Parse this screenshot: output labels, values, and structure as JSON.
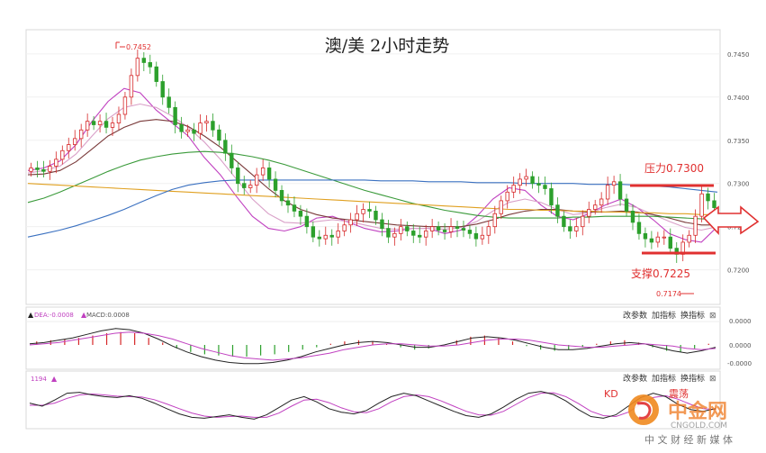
{
  "title": "澳/美 2小时走势",
  "annotations": {
    "resistance_label": "压力0.7300",
    "support_label": "支撑0.7225",
    "high_marker": "0.7452",
    "low_marker": "0.7174"
  },
  "macd_panel": {
    "dea_label": "DEA:-0.0008",
    "macd_label": "MACD:0.0008",
    "tick_labels": [
      "0.0000",
      "0.0000",
      "-0.0000"
    ],
    "buttons": [
      "改参数",
      "加指标",
      "换指标"
    ],
    "close_glyph": "⊠"
  },
  "kdj_panel": {
    "value_label": "1194",
    "buttons": [
      "改参数",
      "加指标",
      "换指标"
    ],
    "close_glyph": "⊠",
    "overlay_text_1": "KD",
    "overlay_text_2": "震荡"
  },
  "watermark": {
    "brand": "中金网",
    "sub": "CNGOLD.COM",
    "tagline": "中 文 财 经 新 媒 体"
  },
  "colors": {
    "up": "#d62728",
    "down": "#2ca02c",
    "resistance_line": "#e03030",
    "arrow": "#e03030",
    "ma_black": "#222222",
    "ma_magenta": "#c040c0",
    "ma_pink": "#d9a0c8",
    "ma_brown": "#7a3a3a",
    "ma_green": "#3a9a3a",
    "ma_orange": "#e0a020",
    "ma_blue": "#3a70c0"
  },
  "chart_data": {
    "type": "candlestick",
    "y_axis_ticks": [
      0.745,
      0.74,
      0.735,
      0.73,
      0.725,
      0.72
    ],
    "y_axis_labels": [
      "0.7450",
      "0.7400",
      "0.7350",
      "0.7300",
      "0.7250",
      "0.7200"
    ],
    "ylim": [
      0.716,
      0.7478
    ],
    "resistance": 0.73,
    "support": 0.7225,
    "high": 0.7452,
    "low": 0.7174,
    "close_series": [
      0.7318,
      0.7316,
      0.7314,
      0.732,
      0.7328,
      0.7338,
      0.7345,
      0.7352,
      0.7362,
      0.7372,
      0.7368,
      0.7372,
      0.7365,
      0.737,
      0.738,
      0.74,
      0.7425,
      0.7445,
      0.744,
      0.7435,
      0.7418,
      0.74,
      0.7388,
      0.7368,
      0.736,
      0.7362,
      0.7358,
      0.737,
      0.7372,
      0.7362,
      0.735,
      0.7335,
      0.7318,
      0.73,
      0.7295,
      0.7298,
      0.731,
      0.7318,
      0.7305,
      0.7292,
      0.728,
      0.7275,
      0.7268,
      0.7262,
      0.725,
      0.7238,
      0.7236,
      0.724,
      0.7238,
      0.7245,
      0.7252,
      0.7258,
      0.7265,
      0.727,
      0.7268,
      0.7258,
      0.7248,
      0.7238,
      0.7242,
      0.725,
      0.7245,
      0.724,
      0.7238,
      0.7245,
      0.725,
      0.7246,
      0.7244,
      0.725,
      0.7248,
      0.7246,
      0.7242,
      0.7236,
      0.724,
      0.725,
      0.7265,
      0.728,
      0.729,
      0.7298,
      0.7305,
      0.7308,
      0.73,
      0.7298,
      0.7294,
      0.7275,
      0.7262,
      0.725,
      0.7245,
      0.725,
      0.7262,
      0.727,
      0.7275,
      0.7282,
      0.7298,
      0.7302,
      0.7282,
      0.7268,
      0.7255,
      0.7242,
      0.7236,
      0.7232,
      0.7238,
      0.7238,
      0.7225,
      0.7218,
      0.7232,
      0.724,
      0.7262,
      0.7288,
      0.728,
      0.7272
    ],
    "ma_series": [
      {
        "color": "ma_magenta",
        "values": [
          0.7315,
          0.7318,
          0.7326,
          0.7345,
          0.7372,
          0.7395,
          0.741,
          0.7405,
          0.7385,
          0.737,
          0.7355,
          0.733,
          0.731,
          0.7285,
          0.7262,
          0.7248,
          0.7245,
          0.725,
          0.726,
          0.7262,
          0.7255,
          0.7248,
          0.7244,
          0.7245,
          0.7248,
          0.7248,
          0.7242,
          0.7246,
          0.7262,
          0.7282,
          0.7295,
          0.7292,
          0.7275,
          0.7262,
          0.7258,
          0.7265,
          0.7275,
          0.7282,
          0.7272,
          0.7258,
          0.7242,
          0.7235,
          0.7232,
          0.725
        ]
      },
      {
        "color": "ma_pink",
        "values": [
          0.7312,
          0.7315,
          0.732,
          0.7334,
          0.7355,
          0.7375,
          0.7388,
          0.7392,
          0.7388,
          0.7378,
          0.7365,
          0.7348,
          0.7328,
          0.7305,
          0.7282,
          0.7265,
          0.7255,
          0.7254,
          0.7256,
          0.7258,
          0.7256,
          0.7252,
          0.7248,
          0.7247,
          0.7248,
          0.7248,
          0.7247,
          0.7249,
          0.7256,
          0.7268,
          0.7278,
          0.7282,
          0.7278,
          0.727,
          0.7264,
          0.7266,
          0.7272,
          0.7276,
          0.7272,
          0.7264,
          0.7256,
          0.7249,
          0.7246,
          0.725
        ]
      },
      {
        "color": "ma_brown",
        "values": [
          0.731,
          0.7311,
          0.7315,
          0.7325,
          0.734,
          0.7355,
          0.7365,
          0.7372,
          0.7374,
          0.7372,
          0.7366,
          0.7355,
          0.7342,
          0.7326,
          0.731,
          0.7294,
          0.728,
          0.727,
          0.7264,
          0.726,
          0.7258,
          0.7256,
          0.7254,
          0.7252,
          0.7251,
          0.725,
          0.725,
          0.725,
          0.7253,
          0.7258,
          0.7264,
          0.7268,
          0.727,
          0.727,
          0.7268,
          0.7267,
          0.7267,
          0.7268,
          0.7267,
          0.7264,
          0.726,
          0.7255,
          0.7252,
          0.7252
        ]
      },
      {
        "color": "ma_green",
        "values": [
          0.7278,
          0.7283,
          0.729,
          0.7298,
          0.7306,
          0.7314,
          0.7321,
          0.7327,
          0.7331,
          0.7334,
          0.7336,
          0.7337,
          0.7336,
          0.7334,
          0.7331,
          0.7327,
          0.7322,
          0.7316,
          0.731,
          0.7304,
          0.7298,
          0.7292,
          0.7287,
          0.7282,
          0.7277,
          0.7273,
          0.7269,
          0.7266,
          0.7263,
          0.7261,
          0.726,
          0.726,
          0.726,
          0.726,
          0.7261,
          0.7261,
          0.7262,
          0.7262,
          0.7262,
          0.7262,
          0.7261,
          0.726,
          0.7259,
          0.7258
        ]
      },
      {
        "color": "ma_orange",
        "values": [
          0.73,
          0.7299,
          0.7298,
          0.7297,
          0.7296,
          0.7295,
          0.7294,
          0.7293,
          0.7292,
          0.7291,
          0.729,
          0.7289,
          0.7288,
          0.7287,
          0.7286,
          0.7285,
          0.7284,
          0.7283,
          0.7282,
          0.7281,
          0.728,
          0.7279,
          0.7278,
          0.7277,
          0.7276,
          0.7275,
          0.7274,
          0.7273,
          0.7272,
          0.7271,
          0.727,
          0.727,
          0.7269,
          0.7269,
          0.7268,
          0.7268,
          0.7267,
          0.7267,
          0.7266,
          0.7266,
          0.7265,
          0.7265,
          0.7264,
          0.7264
        ]
      },
      {
        "color": "ma_blue",
        "values": [
          0.7238,
          0.7242,
          0.7246,
          0.7251,
          0.7257,
          0.7263,
          0.727,
          0.7278,
          0.7286,
          0.7293,
          0.7298,
          0.7301,
          0.7303,
          0.7304,
          0.7304,
          0.7304,
          0.7304,
          0.7304,
          0.7304,
          0.7304,
          0.7304,
          0.7304,
          0.7303,
          0.7303,
          0.7303,
          0.7302,
          0.7302,
          0.7302,
          0.7301,
          0.7301,
          0.7301,
          0.73,
          0.73,
          0.73,
          0.73,
          0.7299,
          0.7299,
          0.7299,
          0.7298,
          0.7297,
          0.7296,
          0.7294,
          0.7292,
          0.729
        ]
      }
    ],
    "macd": {
      "histogram": [
        0.3,
        0.4,
        0.5,
        0.6,
        0.8,
        1.0,
        1.1,
        1.0,
        0.6,
        0.2,
        -0.3,
        -0.6,
        -0.8,
        -0.9,
        -1.0,
        -1.0,
        -0.9,
        -0.8,
        -0.6,
        -0.4,
        -0.2,
        0.1,
        0.3,
        0.4,
        0.3,
        0.1,
        -0.2,
        -0.4,
        -0.3,
        0.0,
        0.4,
        0.7,
        0.8,
        0.6,
        0.3,
        -0.1,
        -0.4,
        -0.5,
        -0.4,
        -0.2,
        0.1,
        0.3,
        0.4,
        0.2,
        -0.2,
        -0.5,
        -0.6,
        -0.3,
        0.1
      ],
      "dif": [
        0.1,
        0.2,
        0.4,
        0.6,
        0.9,
        1.2,
        1.4,
        1.3,
        1.0,
        0.5,
        -0.1,
        -0.6,
        -1.0,
        -1.3,
        -1.5,
        -1.6,
        -1.6,
        -1.5,
        -1.3,
        -1.0,
        -0.6,
        -0.3,
        0.0,
        0.2,
        0.3,
        0.2,
        0.0,
        -0.2,
        -0.2,
        0.0,
        0.3,
        0.6,
        0.7,
        0.6,
        0.4,
        0.1,
        -0.2,
        -0.4,
        -0.4,
        -0.3,
        -0.1,
        0.1,
        0.2,
        0.1,
        -0.2,
        -0.5,
        -0.7,
        -0.5,
        -0.2
      ],
      "dea": [
        0.0,
        0.1,
        0.2,
        0.4,
        0.6,
        0.8,
        1.0,
        1.1,
        1.0,
        0.8,
        0.5,
        0.1,
        -0.3,
        -0.6,
        -0.9,
        -1.1,
        -1.2,
        -1.3,
        -1.2,
        -1.1,
        -0.9,
        -0.7,
        -0.4,
        -0.2,
        0.0,
        0.1,
        0.1,
        0.0,
        -0.1,
        -0.1,
        0.0,
        0.2,
        0.4,
        0.5,
        0.5,
        0.4,
        0.2,
        0.0,
        -0.1,
        -0.2,
        -0.2,
        -0.1,
        0.0,
        0.1,
        0.0,
        -0.1,
        -0.3,
        -0.4,
        -0.3
      ]
    },
    "kdj": {
      "k": [
        55,
        48,
        62,
        78,
        80,
        74,
        70,
        68,
        72,
        66,
        55,
        42,
        30,
        22,
        20,
        24,
        28,
        22,
        18,
        28,
        45,
        62,
        70,
        58,
        42,
        34,
        30,
        38,
        55,
        70,
        78,
        72,
        60,
        48,
        36,
        26,
        22,
        30,
        46,
        64,
        78,
        82,
        75,
        60,
        40,
        24,
        20,
        28,
        48,
        68,
        78,
        70,
        52,
        40,
        36,
        42
      ],
      "d": [
        50,
        50,
        55,
        66,
        74,
        76,
        74,
        71,
        70,
        69,
        63,
        53,
        42,
        32,
        25,
        22,
        24,
        25,
        22,
        22,
        32,
        48,
        62,
        64,
        56,
        44,
        35,
        33,
        42,
        58,
        70,
        74,
        70,
        60,
        48,
        36,
        28,
        27,
        36,
        52,
        68,
        78,
        79,
        70,
        54,
        36,
        26,
        24,
        34,
        52,
        68,
        72,
        64,
        52,
        42,
        40
      ]
    }
  }
}
